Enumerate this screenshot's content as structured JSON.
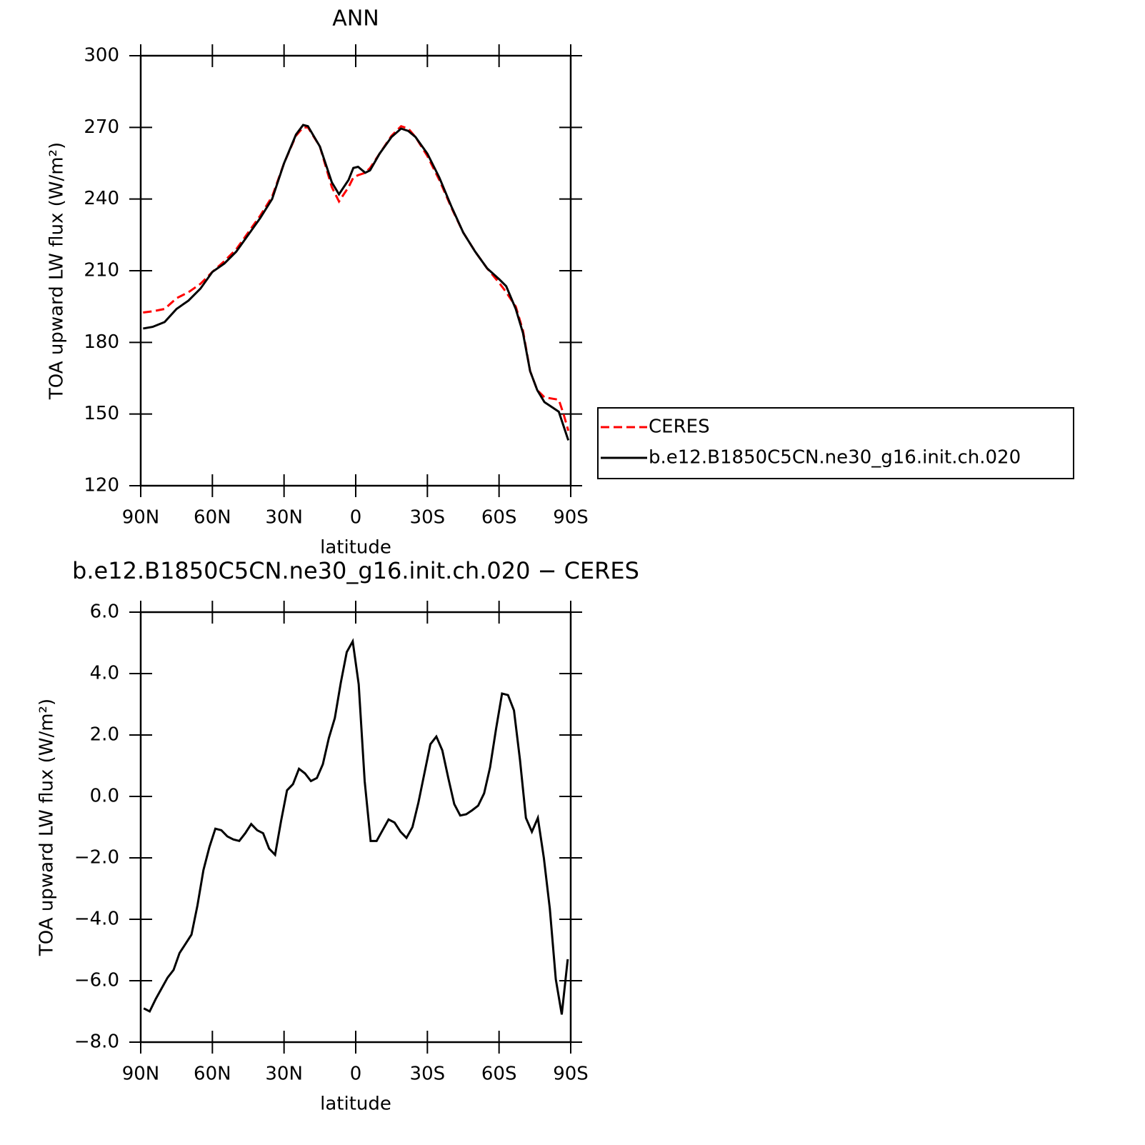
{
  "chart_data": [
    {
      "type": "line",
      "title": "ANN",
      "xlabel": "latitude",
      "ylabel": "TOA upward LW flux (W/m²)",
      "x": [
        89,
        85,
        80,
        75,
        70,
        65,
        60,
        55,
        50,
        45,
        40,
        35,
        30,
        25,
        22,
        20,
        15,
        10,
        7,
        3,
        1,
        -1,
        -4,
        -6,
        -10,
        -15,
        -19,
        -22,
        -25,
        -30,
        -35,
        -40,
        -45,
        -50,
        -55,
        -60,
        -63,
        -67,
        -70,
        -73,
        -76,
        -79,
        -82,
        -85,
        -87,
        -89
      ],
      "series": [
        {
          "name": "CERES",
          "color": "#ff0000",
          "linestyle": "dashed",
          "values": [
            192.5,
            193,
            194,
            198.5,
            201,
            204.5,
            209.5,
            214,
            219,
            226,
            233,
            241,
            255,
            266.5,
            270,
            270,
            262,
            245,
            239,
            245,
            249,
            250,
            251,
            253,
            259,
            266.5,
            270.5,
            269.5,
            266,
            258,
            248,
            236.5,
            226,
            218,
            211,
            205,
            201,
            195,
            185,
            168,
            160,
            157,
            156.5,
            156,
            150,
            143
          ]
        },
        {
          "name": "b.e12.B1850C5CN.ne30_g16.init.ch.020",
          "color": "#000000",
          "linestyle": "solid",
          "values": [
            185.8,
            186.5,
            188.5,
            194,
            197.5,
            202.5,
            209.5,
            213,
            218,
            225,
            232,
            240,
            255,
            267,
            271,
            270.5,
            262,
            247,
            242,
            248,
            253,
            253.5,
            251,
            252,
            259,
            266,
            269.5,
            268.5,
            266,
            259,
            249,
            237,
            226,
            218,
            211,
            206.5,
            203.5,
            194,
            184,
            168,
            160,
            155,
            153,
            151,
            145,
            139
          ]
        }
      ],
      "xlim": [
        90,
        -90
      ],
      "xticks": [
        {
          "value": 90,
          "label": "90N"
        },
        {
          "value": 60,
          "label": "60N"
        },
        {
          "value": 30,
          "label": "30N"
        },
        0,
        {
          "value": -30,
          "label": "30S"
        },
        {
          "value": -60,
          "label": "60S"
        },
        {
          "value": -90,
          "label": "90S"
        }
      ],
      "ylim": [
        120,
        300
      ],
      "yticks": [
        120,
        150,
        180,
        210,
        240,
        270,
        300
      ],
      "legend": "right"
    },
    {
      "type": "line",
      "title": "b.e12.B1850C5CN.ne30_g16.init.ch.020 − CERES",
      "xlabel": "latitude",
      "ylabel": "TOA upward LW flux (W/m²)",
      "x": [
        88.75,
        86.25,
        83.75,
        81.25,
        78.75,
        76.25,
        73.75,
        71.25,
        68.75,
        66.25,
        63.75,
        61.25,
        58.75,
        56.25,
        53.75,
        51.25,
        48.75,
        46.25,
        43.75,
        41.25,
        38.75,
        36.25,
        33.75,
        31.25,
        28.75,
        26.25,
        23.75,
        21.25,
        18.75,
        16.25,
        13.75,
        11.25,
        8.75,
        6.25,
        3.75,
        1.25,
        -1.25,
        -3.75,
        -6.25,
        -8.75,
        -11.25,
        -13.75,
        -16.25,
        -18.75,
        -21.25,
        -23.75,
        -26.25,
        -28.75,
        -31.25,
        -33.75,
        -36.25,
        -38.75,
        -41.25,
        -43.75,
        -46.25,
        -48.75,
        -51.25,
        -53.75,
        -56.25,
        -58.75,
        -61.25,
        -63.75,
        -66.25,
        -68.75,
        -71.25,
        -73.75,
        -76.25,
        -78.75,
        -81.25,
        -83.75,
        -86.25,
        -88.75
      ],
      "series": [
        {
          "name": "b.e12.B1850C5CN.ne30_g16.init.ch.020 − CERES",
          "color": "#000000",
          "linestyle": "solid",
          "values": [
            -6.9,
            -7.0,
            -6.6,
            -6.25,
            -5.9,
            -5.65,
            -5.1,
            -4.8,
            -4.5,
            -3.55,
            -2.4,
            -1.65,
            -1.05,
            -1.1,
            -1.3,
            -1.4,
            -1.45,
            -1.2,
            -0.9,
            -1.1,
            -1.2,
            -1.7,
            -1.9,
            -0.8,
            0.2,
            0.4,
            0.9,
            0.75,
            0.5,
            0.6,
            1.05,
            1.9,
            2.55,
            3.7,
            4.7,
            5.05,
            3.65,
            0.5,
            -1.45,
            -1.45,
            -1.1,
            -0.75,
            -0.85,
            -1.15,
            -1.35,
            -1.0,
            -0.2,
            0.75,
            1.7,
            1.95,
            1.5,
            0.6,
            -0.25,
            -0.62,
            -0.58,
            -0.45,
            -0.3,
            0.1,
            0.95,
            2.2,
            3.35,
            3.3,
            2.8,
            1.2,
            -0.7,
            -1.15,
            -0.7,
            -2.0,
            -3.65,
            -5.95,
            -7.1,
            -5.3
          ]
        }
      ],
      "xlim": [
        90,
        -90
      ],
      "xticks": [
        {
          "value": 90,
          "label": "90N"
        },
        {
          "value": 60,
          "label": "60N"
        },
        {
          "value": 30,
          "label": "30N"
        },
        0,
        {
          "value": -30,
          "label": "30S"
        },
        {
          "value": -60,
          "label": "60S"
        },
        {
          "value": -90,
          "label": "90S"
        }
      ],
      "ylim": [
        -8,
        6
      ],
      "yticks": [
        {
          "value": -8,
          "label": "−8.0"
        },
        {
          "value": -6,
          "label": "−6.0"
        },
        {
          "value": -4,
          "label": "−4.0"
        },
        {
          "value": -2,
          "label": "−2.0"
        },
        {
          "value": 0,
          "label": "0.0"
        },
        {
          "value": 2,
          "label": "2.0"
        },
        {
          "value": 4,
          "label": "4.0"
        },
        {
          "value": 6,
          "label": "6.0"
        }
      ]
    }
  ]
}
